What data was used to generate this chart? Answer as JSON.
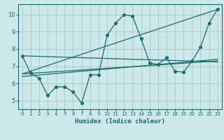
{
  "bg_color": "#cce8e8",
  "grid_color": "#aacccc",
  "line_color": "#1a6b6b",
  "xlabel": "Humidex (Indice chaleur)",
  "xlim": [
    -0.5,
    23.5
  ],
  "ylim": [
    4.5,
    10.6
  ],
  "yticks": [
    5,
    6,
    7,
    8,
    9,
    10
  ],
  "xticks": [
    0,
    1,
    2,
    3,
    4,
    5,
    6,
    7,
    8,
    9,
    10,
    11,
    12,
    13,
    14,
    15,
    16,
    17,
    18,
    19,
    20,
    21,
    22,
    23
  ],
  "line1_x": [
    0,
    1,
    2,
    3,
    4,
    5,
    6,
    7,
    8,
    9,
    10,
    11,
    12,
    13,
    14,
    15,
    16,
    17,
    18,
    19,
    20,
    21,
    22,
    23
  ],
  "line1_y": [
    7.6,
    6.6,
    6.3,
    5.3,
    5.8,
    5.8,
    5.5,
    4.85,
    6.5,
    6.5,
    8.8,
    9.5,
    10.0,
    9.9,
    8.6,
    7.2,
    7.1,
    7.5,
    6.7,
    6.65,
    7.3,
    8.1,
    9.5,
    10.3
  ],
  "line2_x": [
    0,
    23
  ],
  "line2_y": [
    6.55,
    10.3
  ],
  "line3_x": [
    0,
    23
  ],
  "line3_y": [
    7.6,
    7.25
  ],
  "line4_x": [
    0,
    23
  ],
  "line4_y": [
    6.4,
    7.4
  ],
  "line5_x": [
    0,
    23
  ],
  "line5_y": [
    6.55,
    7.3
  ]
}
